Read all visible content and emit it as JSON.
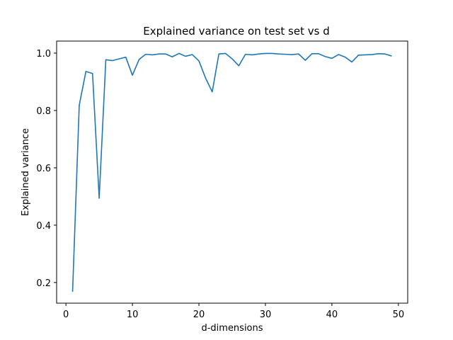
{
  "chart_data": {
    "type": "line",
    "title": "Explained variance on  test set vs d",
    "xlabel": "d-dimensions",
    "ylabel": "Explained variance",
    "xlim": [
      -1.4,
      51.4
    ],
    "ylim": [
      0.128,
      1.042
    ],
    "xticks": [
      0,
      10,
      20,
      30,
      40,
      50
    ],
    "yticks": [
      0.2,
      0.4,
      0.6,
      0.8,
      1.0
    ],
    "xtick_labels": [
      "0",
      "10",
      "20",
      "30",
      "40",
      "50"
    ],
    "ytick_labels": [
      "0.2",
      "0.4",
      "0.6",
      "0.8",
      "1.0"
    ],
    "grid": false,
    "line_color": "#1f77b4",
    "series": [
      {
        "x": [
          1,
          2,
          3,
          4,
          5,
          6,
          7,
          8,
          9,
          10,
          11,
          12,
          13,
          14,
          15,
          16,
          17,
          18,
          19,
          20,
          21,
          22,
          23,
          24,
          25,
          26,
          27,
          28,
          29,
          30,
          31,
          32,
          33,
          34,
          35,
          36,
          37,
          38,
          39,
          40,
          41,
          42,
          43,
          44,
          45,
          46,
          47,
          48,
          49
        ],
        "values": [
          0.168,
          0.818,
          0.936,
          0.929,
          0.494,
          0.977,
          0.974,
          0.98,
          0.986,
          0.923,
          0.978,
          0.996,
          0.994,
          0.997,
          0.997,
          0.987,
          0.999,
          0.989,
          0.995,
          0.973,
          0.913,
          0.865,
          0.997,
          0.999,
          0.98,
          0.956,
          0.996,
          0.994,
          0.997,
          0.999,
          0.999,
          0.997,
          0.996,
          0.995,
          0.997,
          0.975,
          0.998,
          0.998,
          0.988,
          0.982,
          0.995,
          0.986,
          0.969,
          0.993,
          0.994,
          0.995,
          0.998,
          0.997,
          0.99
        ]
      }
    ]
  }
}
